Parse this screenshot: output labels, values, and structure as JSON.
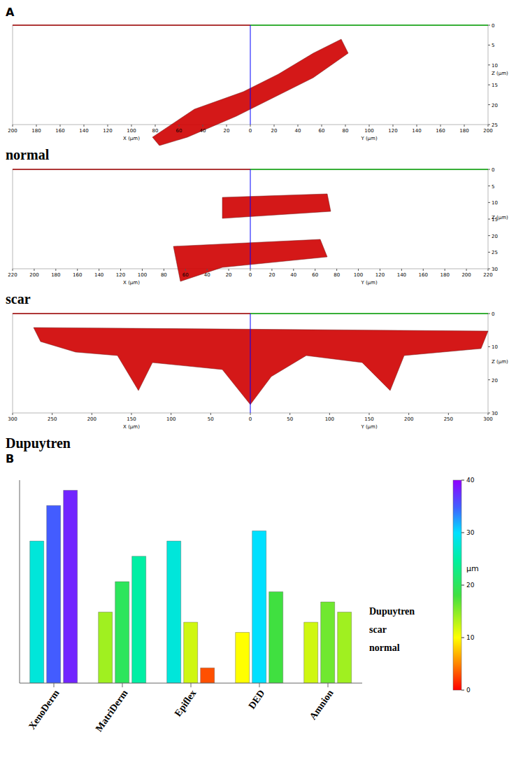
{
  "panel_a": {
    "label": "A",
    "images": [
      {
        "name": "normal",
        "x_axis_label": "X (µm)",
        "y_axis_label": "Y (µm)",
        "z_axis_label": "Z (µm)",
        "x_ticks": [
          200,
          180,
          160,
          140,
          120,
          100,
          80,
          60,
          40,
          20,
          0
        ],
        "y_ticks": [
          0,
          20,
          40,
          60,
          80,
          100,
          120,
          140,
          160,
          180,
          200
        ],
        "z_ticks": [
          0,
          5,
          10,
          15,
          20,
          25
        ]
      },
      {
        "name": "scar",
        "x_axis_label": "X (µm)",
        "y_axis_label": "Y (µm)",
        "z_axis_label": "Z (µm)",
        "x_ticks": [
          220,
          200,
          180,
          160,
          140,
          120,
          100,
          80,
          60,
          40,
          20,
          0
        ],
        "y_ticks": [
          0,
          20,
          40,
          60,
          80,
          100,
          120,
          140,
          160,
          180,
          200,
          220
        ],
        "z_ticks": [
          0,
          5,
          10,
          15,
          20,
          25,
          30
        ]
      },
      {
        "name": "Dupuytren",
        "x_axis_label": "X (µm)",
        "y_axis_label": "Y (µm)",
        "z_axis_label": "Z (µm)",
        "x_ticks": [
          300,
          250,
          200,
          150,
          100,
          50,
          0
        ],
        "y_ticks": [
          0,
          50,
          100,
          150,
          200,
          250,
          300
        ],
        "z_ticks": [
          0,
          10,
          20,
          30
        ]
      }
    ]
  },
  "chart_data": {
    "type": "bar",
    "title": "B",
    "categories": [
      "XenoDerm",
      "MatriDerm",
      "Epiflex",
      "DED",
      "Amnion"
    ],
    "series": [
      {
        "name": "normal",
        "values": [
          28,
          14,
          28,
          10,
          12
        ]
      },
      {
        "name": "scar",
        "values": [
          35,
          20,
          12,
          30,
          16
        ]
      },
      {
        "name": "Dupuytren",
        "values": [
          38,
          25,
          3,
          18,
          14
        ]
      }
    ],
    "ylim": [
      0,
      40
    ],
    "tick_labels": "x",
    "grid": false,
    "colorbar": {
      "range": [
        0,
        40
      ],
      "ticks": [
        0,
        10,
        20,
        30,
        40
      ],
      "label": "µm"
    }
  }
}
